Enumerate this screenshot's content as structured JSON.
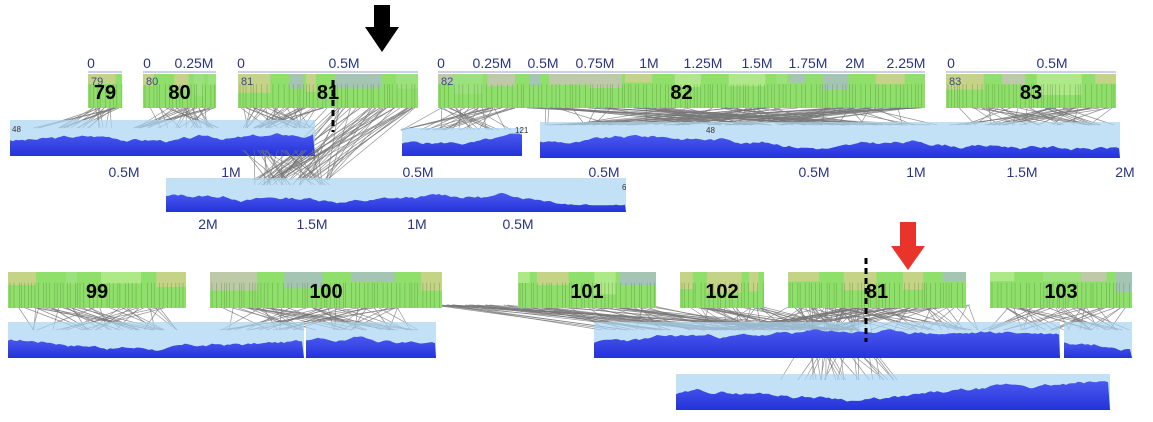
{
  "colors": {
    "contig_green": "#8fe06a",
    "contig_pink": "#e6b8d8",
    "contig_purple": "#b8aef0",
    "contig_orange": "#f0c89a",
    "coverage_blue": "#2f3fe8",
    "coverage_light": "#a8d4f4",
    "link_gray": "#777777",
    "tick_text": "#2a3580",
    "arrow_black": "#000000",
    "arrow_red": "#e8342a",
    "breakpoint": "#000000"
  },
  "top_ruler_labels": [
    "0",
    "0",
    "0.25M",
    "0",
    "0.5M",
    "0",
    "0.25M",
    "0.5M",
    "0.75M",
    "1M",
    "1.25M",
    "1.5M",
    "1.75M",
    "2M",
    "2.25M",
    "0",
    "0.5M"
  ],
  "top_contigs": [
    {
      "label": "79",
      "small": "79"
    },
    {
      "label": "80",
      "small": "80"
    },
    {
      "label": "81",
      "small": "81"
    },
    {
      "label": "82",
      "small": "82"
    },
    {
      "label": "83",
      "small": "83"
    }
  ],
  "top_coverage_small_labels": [
    "48",
    "121",
    "48"
  ],
  "top_scaffold_ticks": [
    "0.5M",
    "1M",
    "0.5M",
    "0.5M",
    "0.5M",
    "1M",
    "1.5M",
    "2M"
  ],
  "lower_scaffold_label": "6",
  "lower_scaffold_ticks": [
    "2M",
    "1.5M",
    "1M",
    "0.5M"
  ],
  "bottom_contigs": [
    {
      "label": "99"
    },
    {
      "label": "100"
    },
    {
      "label": "101"
    },
    {
      "label": "102"
    },
    {
      "label": "81"
    },
    {
      "label": "103"
    }
  ]
}
